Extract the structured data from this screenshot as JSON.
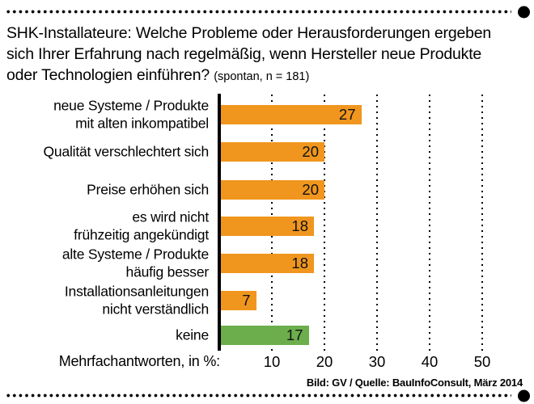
{
  "title": {
    "line1": "SHK-Installateure: Welche Probleme oder Herausforderungen ergeben",
    "line2": "sich Ihrer Erfahrung nach regelmäßig, wenn Hersteller neue Produkte",
    "line3": "oder Technologien einführen?",
    "note": "(spontan, n = 181)"
  },
  "chart_data": {
    "type": "bar",
    "orientation": "horizontal",
    "categories": [
      [
        "neue Systeme / Produkte",
        "mit alten inkompatibel"
      ],
      [
        "Qualität verschlechtert sich"
      ],
      [
        "Preise erhöhen sich"
      ],
      [
        "es wird nicht",
        "frühzeitig angekündigt"
      ],
      [
        "alte Systeme / Produkte",
        "häufig besser"
      ],
      [
        "Installationsanleitungen",
        "nicht verständlich"
      ],
      [
        "keine"
      ]
    ],
    "values": [
      27,
      20,
      20,
      18,
      18,
      7,
      17
    ],
    "bar_colors": [
      "#F0961E",
      "#F0961E",
      "#F0961E",
      "#F0961E",
      "#F0961E",
      "#F0961E",
      "#6CAE4B"
    ],
    "value_labels_inside": true,
    "xlabel": "Mehrfachantworten, in %:",
    "xticks": [
      10,
      20,
      30,
      40,
      50
    ],
    "xlim": [
      0,
      55
    ],
    "grid": "dotted-vertical",
    "legend": "none"
  },
  "footer": {
    "credit": "Bild: GV / Quelle: BauInfoConsult, März 2014"
  },
  "colors": {
    "bar_orange": "#F0961E",
    "bar_green": "#6CAE4B",
    "text": "#000000",
    "background": "#FFFFFF"
  }
}
